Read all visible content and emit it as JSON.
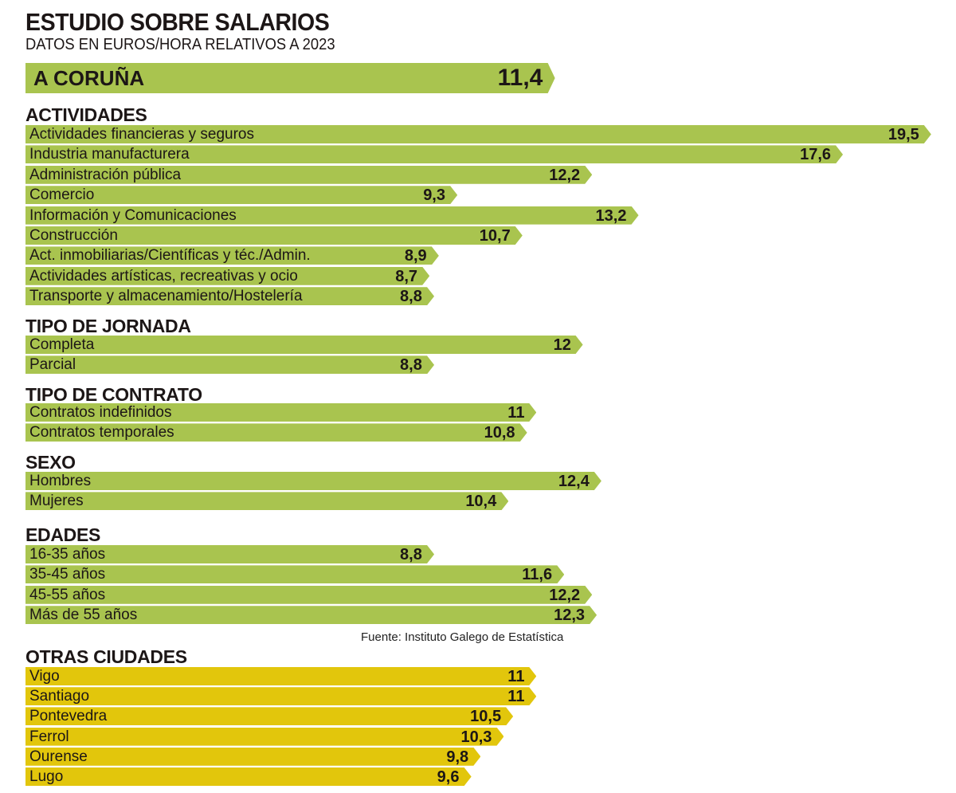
{
  "chart_data": {
    "type": "bar",
    "orientation": "horizontal",
    "title": "ESTUDIO SOBRE SALARIOS",
    "subtitle": "DATOS EN EUROS/HORA RELATIVOS A 2023",
    "source": "Fuente: Instituto Galego de Estatística",
    "colors": {
      "green": "#a9c44f",
      "yellow": "#e2c60c",
      "text": "#1c1616"
    },
    "headline": {
      "label": "A CORUÑA",
      "value": 11.4,
      "display": "11,4"
    },
    "sections": [
      {
        "heading": "ACTIVIDADES",
        "color": "green",
        "items": [
          {
            "label": "Actividades financieras y seguros",
            "value": 19.5,
            "display": "19,5"
          },
          {
            "label": "Industria manufacturera",
            "value": 17.6,
            "display": "17,6"
          },
          {
            "label": "Administración pública",
            "value": 12.2,
            "display": "12,2"
          },
          {
            "label": "Comercio",
            "value": 9.3,
            "display": "9,3"
          },
          {
            "label": "Información y Comunicaciones",
            "value": 13.2,
            "display": "13,2"
          },
          {
            "label": "Construcción",
            "value": 10.7,
            "display": "10,7"
          },
          {
            "label": "Act. inmobiliarias/Científicas y téc./Admin.",
            "value": 8.9,
            "display": "8,9"
          },
          {
            "label": "Actividades artísticas, recreativas y ocio",
            "value": 8.7,
            "display": "8,7"
          },
          {
            "label": "Transporte y almacenamiento/Hostelería",
            "value": 8.8,
            "display": "8,8"
          }
        ]
      },
      {
        "heading": "TIPO DE JORNADA",
        "color": "green",
        "items": [
          {
            "label": "Completa",
            "value": 12,
            "display": "12"
          },
          {
            "label": "Parcial",
            "value": 8.8,
            "display": "8,8"
          }
        ]
      },
      {
        "heading": "TIPO DE CONTRATO",
        "color": "green",
        "items": [
          {
            "label": "Contratos indefinidos",
            "value": 11,
            "display": "11"
          },
          {
            "label": "Contratos temporales",
            "value": 10.8,
            "display": "10,8"
          }
        ]
      },
      {
        "heading": "SEXO",
        "color": "green",
        "items": [
          {
            "label": "Hombres",
            "value": 12.4,
            "display": "12,4"
          },
          {
            "label": "Mujeres",
            "value": 10.4,
            "display": "10,4"
          }
        ]
      },
      {
        "heading": "EDADES",
        "color": "green",
        "items": [
          {
            "label": "16-35 años",
            "value": 8.8,
            "display": "8,8"
          },
          {
            "label": "35-45 años",
            "value": 11.6,
            "display": "11,6"
          },
          {
            "label": "45-55 años",
            "value": 12.2,
            "display": "12,2"
          },
          {
            "label": "Más de 55 años",
            "value": 12.3,
            "display": "12,3"
          }
        ]
      },
      {
        "heading": "OTRAS CIUDADES",
        "color": "yellow",
        "items": [
          {
            "label": "Vigo",
            "value": 11,
            "display": "11"
          },
          {
            "label": "Santiago",
            "value": 11,
            "display": "11"
          },
          {
            "label": "Pontevedra",
            "value": 10.5,
            "display": "10,5"
          },
          {
            "label": "Ferrol",
            "value": 10.3,
            "display": "10,3"
          },
          {
            "label": "Ourense",
            "value": 9.8,
            "display": "9,8"
          },
          {
            "label": "Lugo",
            "value": 9.6,
            "display": "9,6"
          }
        ]
      }
    ]
  }
}
